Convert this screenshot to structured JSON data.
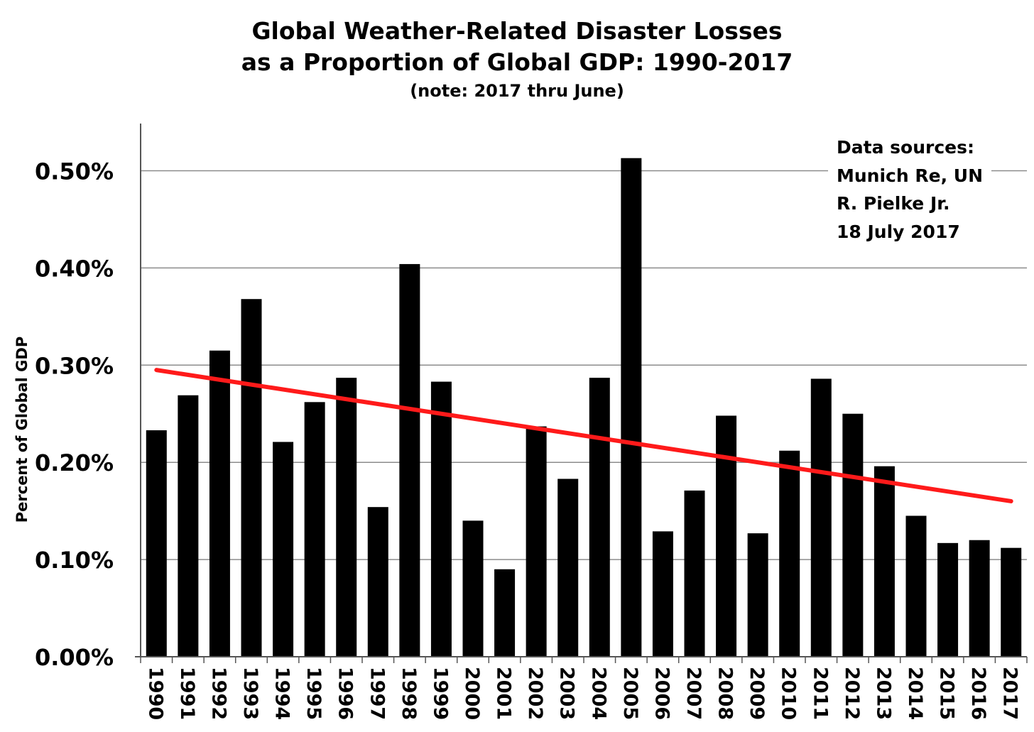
{
  "chart_data": {
    "type": "bar",
    "title_lines": [
      "Global Weather-Related Disaster Losses",
      "as a Proportion of Global GDP: 1990-2017"
    ],
    "subtitle": "(note: 2017 thru June)",
    "xlabel": "",
    "ylabel": "Percent of Global GDP",
    "categories": [
      "1990",
      "1991",
      "1992",
      "1993",
      "1994",
      "1995",
      "1996",
      "1997",
      "1998",
      "1999",
      "2000",
      "2001",
      "2002",
      "2003",
      "2004",
      "2005",
      "2006",
      "2007",
      "2008",
      "2009",
      "2010",
      "2011",
      "2012",
      "2013",
      "2014",
      "2015",
      "2016",
      "2017"
    ],
    "values": [
      0.233,
      0.269,
      0.315,
      0.368,
      0.221,
      0.262,
      0.287,
      0.154,
      0.404,
      0.283,
      0.14,
      0.09,
      0.237,
      0.183,
      0.287,
      0.513,
      0.129,
      0.171,
      0.248,
      0.127,
      0.212,
      0.286,
      0.25,
      0.196,
      0.145,
      0.117,
      0.12,
      0.112
    ],
    "ylim": [
      0,
      0.55
    ],
    "yticks": [
      0,
      0.1,
      0.2,
      0.3,
      0.4,
      0.5
    ],
    "ytick_labels": [
      "0.00%",
      "0.10%",
      "0.20%",
      "0.30%",
      "0.40%",
      "0.50%"
    ],
    "grid": true,
    "legend": "none",
    "trendline": {
      "start": {
        "x": "1990",
        "y": 0.295
      },
      "end": {
        "x": "2017",
        "y": 0.16
      },
      "color": "#ff1a1a"
    },
    "bar_color": "#000000",
    "annotation": {
      "lines": [
        "Data sources:",
        "Munich Re, UN",
        "R. Pielke Jr.",
        "18 July 2017"
      ],
      "placement": "top-right"
    }
  }
}
